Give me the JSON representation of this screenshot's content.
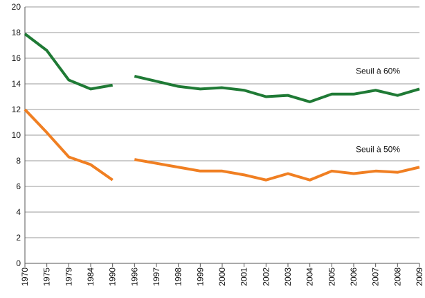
{
  "chart_data": {
    "type": "line",
    "categories": [
      "1970",
      "1975",
      "1979",
      "1984",
      "1990",
      "1996",
      "1997",
      "1998",
      "1999",
      "2000",
      "2001",
      "2002",
      "2003",
      "2004",
      "2005",
      "2006",
      "2007",
      "2008",
      "2009"
    ],
    "gap_after": "1990",
    "series": [
      {
        "name": "Seuil à 60%",
        "color": "#1f7a35",
        "values": [
          17.9,
          16.6,
          14.3,
          13.6,
          13.9,
          14.6,
          14.2,
          13.8,
          13.6,
          13.7,
          13.5,
          13.0,
          13.1,
          12.6,
          13.2,
          13.2,
          13.5,
          13.1,
          13.6
        ]
      },
      {
        "name": "Seuil à 50%",
        "color": "#f07f22",
        "values": [
          12.0,
          10.2,
          8.3,
          7.7,
          6.5,
          8.1,
          7.8,
          7.5,
          7.2,
          7.2,
          6.9,
          6.5,
          7.0,
          6.5,
          7.2,
          7.0,
          7.2,
          7.1,
          7.5
        ]
      }
    ],
    "ylim": [
      0,
      20
    ],
    "yticks": [
      0,
      2,
      4,
      6,
      8,
      10,
      12,
      14,
      16,
      18,
      20
    ],
    "grid": true
  }
}
